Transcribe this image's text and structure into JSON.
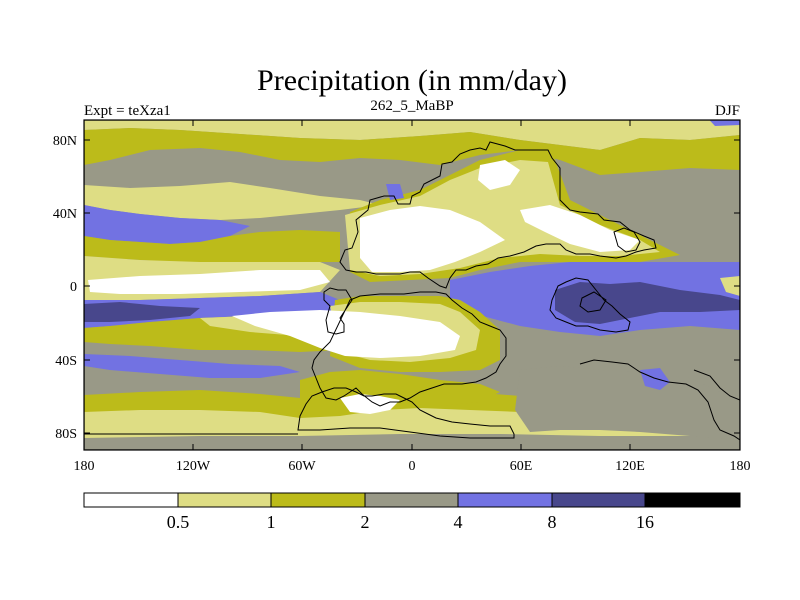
{
  "title": "Precipitation (in mm/day)",
  "experiment_label": "Expt = teXza1",
  "period_label": "262_5_MaBP",
  "season_label": "DJF",
  "axes": {
    "x_ticks": [
      "180",
      "120W",
      "60W",
      "0",
      "60E",
      "120E",
      "180"
    ],
    "y_ticks": [
      "80N",
      "40N",
      "0",
      "40S",
      "80S"
    ]
  },
  "colorbar": {
    "labels": [
      "0.5",
      "1",
      "2",
      "4",
      "8",
      "16"
    ],
    "colors": [
      "#ffffff",
      "#dedd84",
      "#bcbb1a",
      "#999987",
      "#7272e2",
      "#48478c",
      "#000000"
    ]
  },
  "chart_data": {
    "type": "heatmap",
    "variable": "Precipitation",
    "units": "mm/day",
    "levels": [
      0.5,
      1,
      2,
      4,
      8,
      16
    ],
    "lon_range": [
      -180,
      180
    ],
    "lat_range": [
      -90,
      90
    ]
  }
}
